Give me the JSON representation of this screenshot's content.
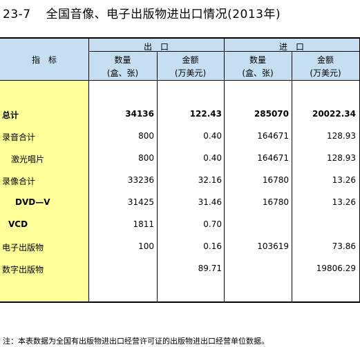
{
  "table_id": "23-7",
  "title": "全国音像、电子出版物进出口情况(2013年)",
  "header": {
    "indicator": "指　标",
    "export_label": "出　口",
    "import_label": "进　口",
    "quantity_label": "数量",
    "quantity_unit": "(盒、张)",
    "amount_label": "金额",
    "amount_unit": "(万美元)"
  },
  "rows": [
    {
      "label": "总计",
      "exp_qty": "34136",
      "exp_amt": "122.43",
      "imp_qty": "285070",
      "imp_amt": "20022.34"
    },
    {
      "label": "录音合计",
      "exp_qty": "800",
      "exp_amt": "0.40",
      "imp_qty": "164671",
      "imp_amt": "128.93"
    },
    {
      "label": "激光唱片",
      "exp_qty": "800",
      "exp_amt": "0.40",
      "imp_qty": "164671",
      "imp_amt": "128.93"
    },
    {
      "label": "录像合计",
      "exp_qty": "33236",
      "exp_amt": "32.16",
      "imp_qty": "16780",
      "imp_amt": "13.26"
    },
    {
      "label": "DVD—V",
      "exp_qty": "31425",
      "exp_amt": "31.46",
      "imp_qty": "16780",
      "imp_amt": "13.26"
    },
    {
      "label": "VCD",
      "exp_qty": "1811",
      "exp_amt": "0.70",
      "imp_qty": "",
      "imp_amt": ""
    },
    {
      "label": "电子出版物",
      "exp_qty": "100",
      "exp_amt": "0.16",
      "imp_qty": "103619",
      "imp_amt": "73.86"
    },
    {
      "label": "数字出版物",
      "exp_qty": "",
      "exp_amt": "89.71",
      "imp_qty": "",
      "imp_amt": "19806.29"
    }
  ],
  "note": "注：本表数据为全国有出版物进出口经营许可证的出版物进出口经营单位数据。"
}
